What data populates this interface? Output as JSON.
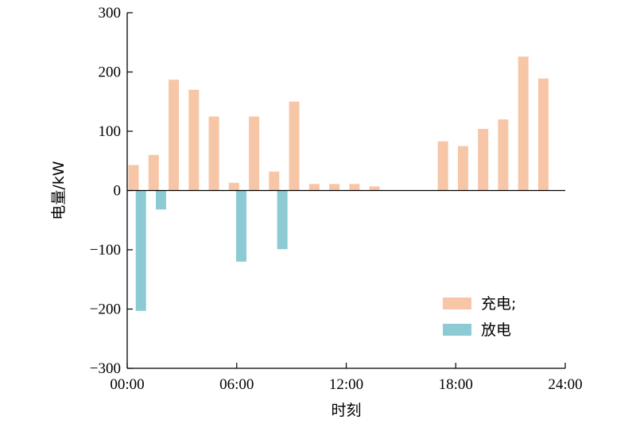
{
  "chart_data": {
    "type": "bar",
    "xlabel": "时刻",
    "ylabel": "电量/kW",
    "ylim": [
      -300,
      300
    ],
    "yticks": [
      -300,
      -200,
      -100,
      0,
      100,
      200,
      300
    ],
    "xlim": [
      0,
      24
    ],
    "xticks": [
      {
        "value": 0,
        "label": "00:00"
      },
      {
        "value": 6,
        "label": "06:00"
      },
      {
        "value": 12,
        "label": "12:00"
      },
      {
        "value": 18,
        "label": "18:00"
      },
      {
        "value": 24,
        "label": "24:00"
      }
    ],
    "grid": false,
    "legend": "bottom-right",
    "series": [
      {
        "name": "充电;",
        "color": "#f7c6a7",
        "points": [
          {
            "x": 0.35,
            "y": 43
          },
          {
            "x": 1.45,
            "y": 60
          },
          {
            "x": 2.55,
            "y": 187
          },
          {
            "x": 3.65,
            "y": 170
          },
          {
            "x": 4.75,
            "y": 125
          },
          {
            "x": 5.85,
            "y": 13
          },
          {
            "x": 6.95,
            "y": 125
          },
          {
            "x": 8.05,
            "y": 32
          },
          {
            "x": 9.15,
            "y": 150
          },
          {
            "x": 10.25,
            "y": 11
          },
          {
            "x": 11.35,
            "y": 11
          },
          {
            "x": 12.45,
            "y": 11
          },
          {
            "x": 13.55,
            "y": 7
          },
          {
            "x": 17.3,
            "y": 83
          },
          {
            "x": 18.4,
            "y": 75
          },
          {
            "x": 19.5,
            "y": 104
          },
          {
            "x": 20.6,
            "y": 120
          },
          {
            "x": 21.7,
            "y": 226
          },
          {
            "x": 22.8,
            "y": 189
          }
        ]
      },
      {
        "name": "放电",
        "color": "#8ccbd3",
        "points": [
          {
            "x": 0.75,
            "y": -203
          },
          {
            "x": 1.85,
            "y": -32
          },
          {
            "x": 6.25,
            "y": -120
          },
          {
            "x": 8.5,
            "y": -99
          }
        ]
      }
    ]
  }
}
